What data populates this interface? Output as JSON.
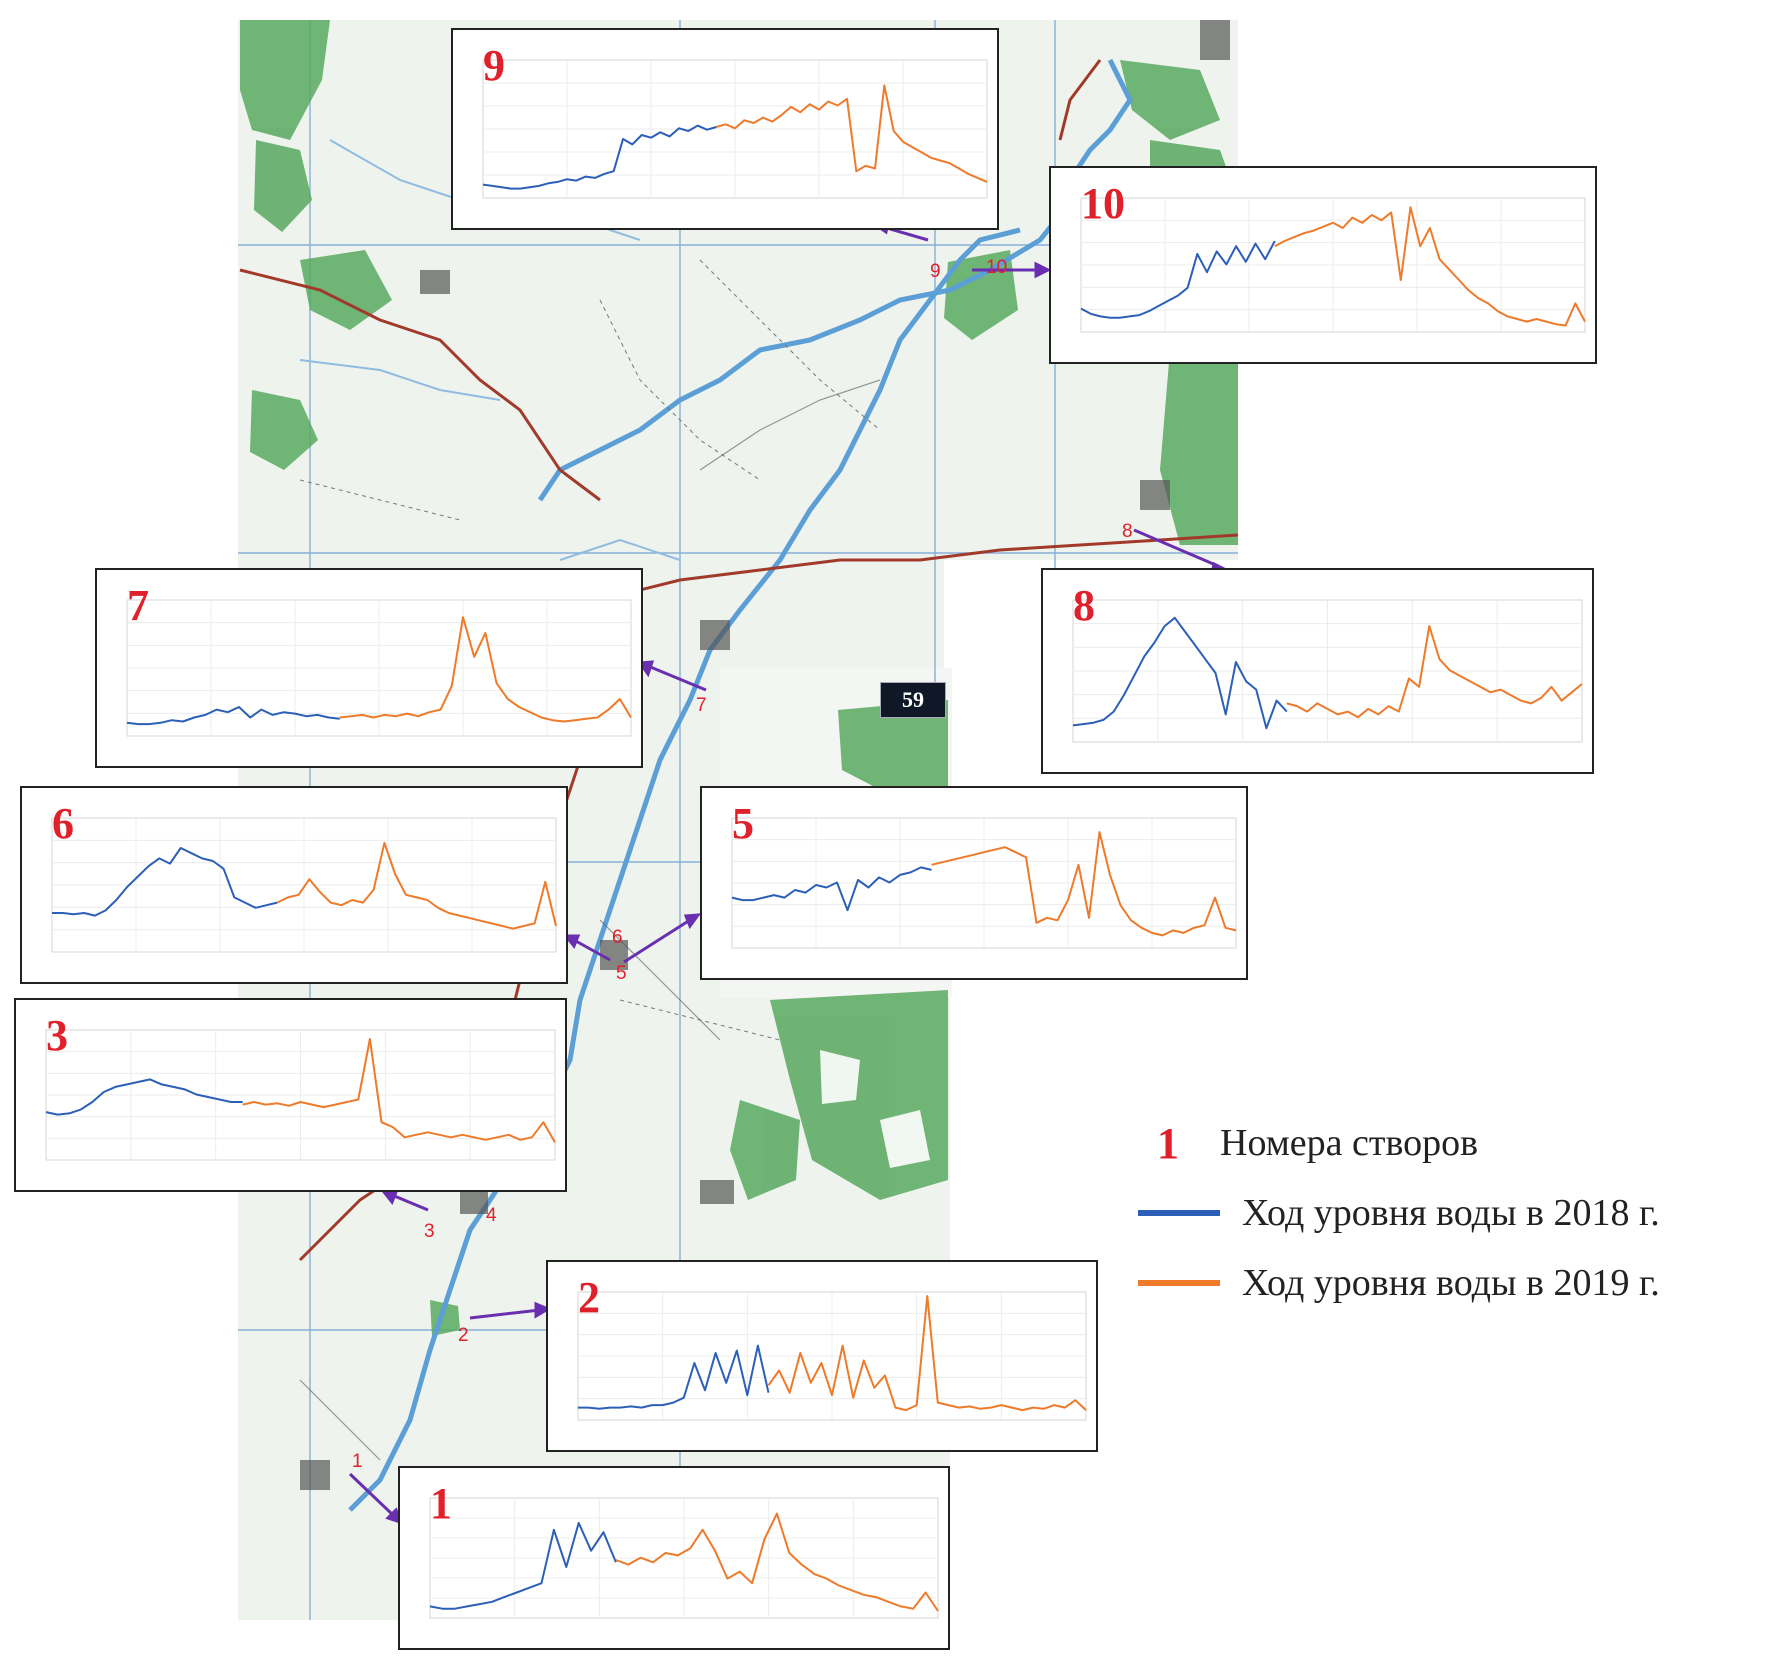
{
  "colors": {
    "series_2018": "#2c5fb8",
    "series_2019": "#ee7a2a",
    "site_number": "#e0202a",
    "arrow": "#6a2fb0",
    "forest": "#3f9b4e",
    "river": "#5b9fd6"
  },
  "map": {
    "badge": "59",
    "site_labels": [
      "1",
      "2",
      "3",
      "4",
      "5",
      "6",
      "7",
      "8",
      "9",
      "10"
    ]
  },
  "legend": {
    "site_number_sample": "1",
    "site_numbers_label": "Номера створов",
    "series_2018_label": "Ход уровня воды в 2018 г.",
    "series_2019_label": "Ход уровня воды в 2019 г."
  },
  "panels": [
    {
      "id": "9",
      "number": "9"
    },
    {
      "id": "10",
      "number": "10"
    },
    {
      "id": "7",
      "number": "7"
    },
    {
      "id": "8",
      "number": "8"
    },
    {
      "id": "6",
      "number": "6"
    },
    {
      "id": "5",
      "number": "5"
    },
    {
      "id": "3",
      "number": "3"
    },
    {
      "id": "2",
      "number": "2"
    },
    {
      "id": "1",
      "number": "1"
    }
  ],
  "chart_data": [
    {
      "type": "line",
      "site": "9",
      "series": [
        {
          "year": "2018",
          "values": [
            10,
            9,
            8,
            7,
            7,
            8,
            9,
            11,
            12,
            14,
            13,
            16,
            15,
            18,
            20,
            44,
            40,
            47,
            45,
            49,
            46,
            52,
            50,
            54,
            51,
            53
          ]
        },
        {
          "year": "2019",
          "values": [
            53,
            55,
            52,
            58,
            56,
            60,
            57,
            62,
            68,
            64,
            70,
            66,
            72,
            69,
            74,
            20,
            24,
            22,
            84,
            50,
            42,
            38,
            34,
            30,
            28,
            26,
            22,
            18,
            15,
            12
          ]
        }
      ]
    },
    {
      "type": "line",
      "site": "10",
      "series": [
        {
          "year": "2018",
          "values": [
            18,
            14,
            12,
            11,
            11,
            12,
            13,
            16,
            20,
            24,
            28,
            34,
            60,
            46,
            62,
            52,
            66,
            54,
            68,
            56,
            70
          ]
        },
        {
          "year": "2019",
          "values": [
            66,
            70,
            73,
            76,
            78,
            81,
            84,
            80,
            88,
            84,
            90,
            86,
            92,
            40,
            96,
            66,
            80,
            56,
            48,
            40,
            32,
            26,
            22,
            16,
            12,
            10,
            8,
            10,
            8,
            6,
            5,
            22,
            8
          ]
        }
      ]
    },
    {
      "type": "line",
      "site": "7",
      "series": [
        {
          "year": "2018",
          "values": [
            10,
            9,
            9,
            10,
            12,
            11,
            14,
            16,
            20,
            18,
            22,
            14,
            20,
            16,
            18,
            17,
            15,
            16,
            14,
            13
          ]
        },
        {
          "year": "2019",
          "values": [
            14,
            15,
            16,
            14,
            16,
            15,
            17,
            15,
            18,
            20,
            38,
            90,
            60,
            78,
            40,
            28,
            22,
            18,
            14,
            12,
            11,
            12,
            13,
            14,
            20,
            28,
            14
          ]
        }
      ]
    },
    {
      "type": "line",
      "site": "8",
      "series": [
        {
          "year": "2018",
          "values": [
            12,
            13,
            14,
            16,
            22,
            34,
            48,
            62,
            72,
            84,
            90,
            80,
            70,
            60,
            50,
            20,
            58,
            44,
            38,
            10,
            30,
            22
          ]
        },
        {
          "year": "2019",
          "values": [
            28,
            26,
            22,
            28,
            24,
            20,
            22,
            18,
            24,
            20,
            26,
            22,
            46,
            40,
            84,
            60,
            52,
            48,
            44,
            40,
            36,
            38,
            34,
            30,
            28,
            32,
            40,
            30,
            36,
            42
          ]
        }
      ]
    },
    {
      "type": "line",
      "site": "6",
      "series": [
        {
          "year": "2018",
          "values": [
            30,
            30,
            29,
            30,
            28,
            32,
            40,
            50,
            58,
            66,
            72,
            68,
            80,
            76,
            72,
            70,
            64,
            42,
            38,
            34,
            36,
            38
          ]
        },
        {
          "year": "2019",
          "values": [
            38,
            42,
            44,
            56,
            46,
            38,
            36,
            40,
            38,
            48,
            84,
            60,
            44,
            42,
            40,
            34,
            30,
            28,
            26,
            24,
            22,
            20,
            18,
            20,
            22,
            54,
            20
          ]
        }
      ]
    },
    {
      "type": "line",
      "site": "5",
      "series": [
        {
          "year": "2018",
          "values": [
            40,
            38,
            38,
            40,
            42,
            40,
            46,
            44,
            50,
            48,
            52,
            30,
            54,
            48,
            56,
            52,
            58,
            60,
            64,
            62
          ]
        },
        {
          "year": "2019",
          "values": [
            66,
            68,
            70,
            72,
            74,
            76,
            78,
            80,
            76,
            72,
            20,
            24,
            22,
            38,
            66,
            24,
            92,
            58,
            34,
            22,
            16,
            12,
            10,
            14,
            12,
            16,
            18,
            40,
            16,
            14
          ]
        }
      ]
    },
    {
      "type": "line",
      "site": "3",
      "series": [
        {
          "year": "2018",
          "values": [
            38,
            36,
            37,
            40,
            46,
            54,
            58,
            60,
            62,
            64,
            60,
            58,
            56,
            52,
            50,
            48,
            46,
            46
          ]
        },
        {
          "year": "2019",
          "values": [
            44,
            46,
            44,
            45,
            43,
            46,
            44,
            42,
            44,
            46,
            48,
            96,
            30,
            26,
            18,
            20,
            22,
            20,
            18,
            20,
            18,
            16,
            18,
            20,
            16,
            18,
            30,
            14
          ]
        }
      ]
    },
    {
      "type": "line",
      "site": "2",
      "series": [
        {
          "year": "2018",
          "values": [
            10,
            10,
            9,
            10,
            10,
            11,
            10,
            12,
            12,
            14,
            18,
            46,
            24,
            54,
            30,
            56,
            20,
            60,
            22
          ]
        },
        {
          "year": "2019",
          "values": [
            28,
            40,
            22,
            54,
            30,
            46,
            20,
            60,
            18,
            48,
            26,
            36,
            10,
            8,
            12,
            100,
            14,
            12,
            10,
            11,
            9,
            10,
            12,
            10,
            8,
            10,
            9,
            12,
            10,
            16,
            8
          ]
        }
      ]
    },
    {
      "type": "line",
      "site": "1",
      "series": [
        {
          "year": "2018",
          "values": [
            10,
            8,
            8,
            10,
            12,
            14,
            18,
            22,
            26,
            30,
            76,
            44,
            82,
            58,
            74,
            48
          ]
        },
        {
          "year": "2019",
          "values": [
            50,
            46,
            52,
            48,
            56,
            54,
            60,
            76,
            58,
            34,
            40,
            30,
            68,
            90,
            56,
            46,
            38,
            34,
            28,
            24,
            20,
            18,
            14,
            10,
            8,
            22,
            6
          ]
        }
      ]
    }
  ]
}
